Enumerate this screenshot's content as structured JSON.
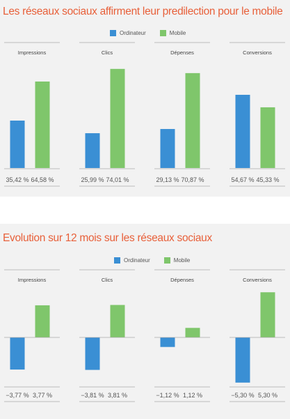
{
  "chart_data": [
    {
      "type": "bar",
      "title": "Les réseaux sociaux affirment leur predilection pour le mobile",
      "legend": [
        "Ordinateur",
        "Mobile"
      ],
      "legend_placement": "top-center",
      "categories": [
        "Impressions",
        "Clics",
        "Dépenses",
        "Conversions"
      ],
      "series": [
        {
          "name": "Ordinateur",
          "values": [
            35.42,
            25.99,
            29.13,
            54.67
          ],
          "labels": [
            "35,42 %",
            "25,99 %",
            "29,13 %",
            "54,67 %"
          ]
        },
        {
          "name": "Mobile",
          "values": [
            64.58,
            74.01,
            70.87,
            45.33
          ],
          "labels": [
            "64,58 %",
            "74,01 %",
            "70,87 %",
            "45,33 %"
          ]
        }
      ],
      "ylim": [
        0,
        76
      ],
      "grid": false
    },
    {
      "type": "bar",
      "title": "Evolution sur 12 mois sur les réseaux sociaux",
      "legend": [
        "Ordinateur",
        "Mobile"
      ],
      "legend_placement": "top-center",
      "categories": [
        "Impressions",
        "Clics",
        "Dépenses",
        "Conversions"
      ],
      "series": [
        {
          "name": "Ordinateur",
          "values": [
            -3.77,
            -3.81,
            -1.12,
            -5.3
          ],
          "labels": [
            "−3,77 %",
            "−3,81 %",
            "−1,12 %",
            "−5,30 %"
          ]
        },
        {
          "name": "Mobile",
          "values": [
            3.77,
            3.81,
            1.12,
            5.3
          ],
          "labels": [
            "3,77 %",
            "3,81 %",
            "1,12 %",
            "5,30 %"
          ]
        }
      ],
      "ylim": [
        -5.4,
        5.4
      ],
      "grid": false
    }
  ],
  "colors": {
    "ordinateur": "#3a8fd4",
    "mobile": "#7fc66b",
    "title": "#e8603a",
    "rule": "#aaaaaa"
  }
}
